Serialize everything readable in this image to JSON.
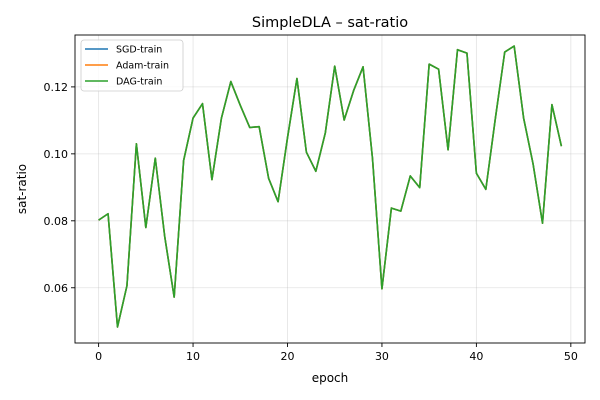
{
  "chart_data": {
    "type": "line",
    "title": "SimpleDLA – sat-ratio",
    "xlabel": "epoch",
    "ylabel": "sat-ratio",
    "xlim": [
      -2.5,
      51.5
    ],
    "ylim": [
      0.0435,
      0.1355
    ],
    "xticks": [
      0,
      10,
      20,
      30,
      40,
      50
    ],
    "yticks": [
      0.06,
      0.08,
      0.1,
      0.12
    ],
    "ytick_labels": [
      "0.06",
      "0.08",
      "0.10",
      "0.12"
    ],
    "grid": true,
    "legend_position": "top-left",
    "x": [
      0,
      1,
      2,
      3,
      4,
      5,
      6,
      7,
      8,
      9,
      10,
      11,
      12,
      13,
      14,
      15,
      16,
      17,
      18,
      19,
      20,
      21,
      22,
      23,
      24,
      25,
      26,
      27,
      28,
      29,
      30,
      31,
      32,
      33,
      34,
      35,
      36,
      37,
      38,
      39,
      40,
      41,
      42,
      43,
      44,
      45,
      46,
      47,
      48,
      49
    ],
    "series": [
      {
        "name": "SGD-train",
        "color": "#1f77b4",
        "values": [
          0.0802,
          0.0821,
          0.0483,
          0.0606,
          0.103,
          0.078,
          0.0987,
          0.0753,
          0.0572,
          0.098,
          0.1107,
          0.115,
          0.0923,
          0.1106,
          0.1216,
          0.1145,
          0.1079,
          0.1081,
          0.0927,
          0.0857,
          0.1048,
          0.1225,
          0.1005,
          0.0948,
          0.1062,
          0.1262,
          0.1101,
          0.1189,
          0.126,
          0.0986,
          0.0597,
          0.0838,
          0.0829,
          0.0934,
          0.0899,
          0.1268,
          0.1253,
          0.1012,
          0.1311,
          0.1301,
          0.0942,
          0.0894,
          0.1104,
          0.1304,
          0.1322,
          0.1107,
          0.097,
          0.0793,
          0.1147,
          0.1023
        ]
      },
      {
        "name": "Adam-train",
        "color": "#ff7f0e",
        "values": [
          0.0802,
          0.0821,
          0.0483,
          0.0606,
          0.103,
          0.078,
          0.0987,
          0.0753,
          0.0572,
          0.098,
          0.1107,
          0.115,
          0.0923,
          0.1106,
          0.1216,
          0.1145,
          0.1079,
          0.1081,
          0.0927,
          0.0857,
          0.1048,
          0.1225,
          0.1005,
          0.0948,
          0.1062,
          0.1262,
          0.1101,
          0.1189,
          0.126,
          0.0986,
          0.0597,
          0.0838,
          0.0829,
          0.0934,
          0.0899,
          0.1268,
          0.1253,
          0.1012,
          0.1311,
          0.1301,
          0.0942,
          0.0894,
          0.1104,
          0.1304,
          0.1322,
          0.1107,
          0.097,
          0.0793,
          0.1147,
          0.1023
        ]
      },
      {
        "name": "DAG-train",
        "color": "#2ca02c",
        "values": [
          0.0802,
          0.0821,
          0.0483,
          0.0606,
          0.103,
          0.078,
          0.0987,
          0.0753,
          0.0572,
          0.098,
          0.1107,
          0.115,
          0.0923,
          0.1106,
          0.1216,
          0.1145,
          0.1079,
          0.1081,
          0.0927,
          0.0857,
          0.1048,
          0.1225,
          0.1005,
          0.0948,
          0.1062,
          0.1262,
          0.1101,
          0.1189,
          0.126,
          0.0986,
          0.0597,
          0.0838,
          0.0829,
          0.0934,
          0.0899,
          0.1268,
          0.1253,
          0.1012,
          0.1311,
          0.1301,
          0.0942,
          0.0894,
          0.1104,
          0.1304,
          0.1322,
          0.1107,
          0.097,
          0.0793,
          0.1147,
          0.1023
        ]
      }
    ]
  }
}
